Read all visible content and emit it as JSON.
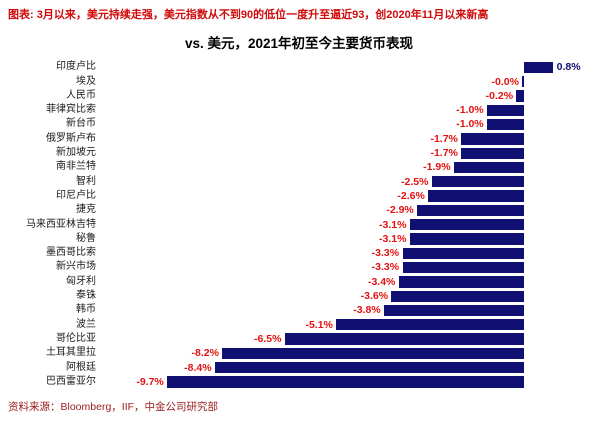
{
  "figure": {
    "caption": "图表: 3月以来，美元持续走强，美元指数从不到90的低位一度升至逼近93，创2020年11月以来新高",
    "source": "资料来源：Bloomberg，IIF，中金公司研究部"
  },
  "chart_data": {
    "type": "bar",
    "orientation": "horizontal",
    "title": "vs. 美元，2021年初至今主要货币表现",
    "unit": "%",
    "xlim": [
      -11.5,
      1.8
    ],
    "grid": false,
    "legend": "none",
    "bar_color": "#101073",
    "negative_label_color": "#e31212",
    "positive_label_color": "#101073",
    "categories": [
      "印度卢比",
      "埃及",
      "人民币",
      "菲律宾比索",
      "新台币",
      "俄罗斯卢布",
      "新加坡元",
      "南非兰特",
      "智利",
      "印尼卢比",
      "捷克",
      "马来西亚林吉特",
      "秘鲁",
      "墨西哥比索",
      "新兴市场",
      "匈牙利",
      "泰铢",
      "韩币",
      "波兰",
      "哥伦比亚",
      "土耳其里拉",
      "阿根廷",
      "巴西雷亚尔"
    ],
    "values": [
      0.8,
      -0.0,
      -0.2,
      -1.0,
      -1.0,
      -1.7,
      -1.7,
      -1.9,
      -2.5,
      -2.6,
      -2.9,
      -3.1,
      -3.1,
      -3.3,
      -3.3,
      -3.4,
      -3.6,
      -3.8,
      -5.1,
      -6.5,
      -8.2,
      -8.4,
      -9.7
    ],
    "value_labels": [
      "0.8%",
      "-0.0%",
      "-0.2%",
      "-1.0%",
      "-1.0%",
      "-1.7%",
      "-1.7%",
      "-1.9%",
      "-2.5%",
      "-2.6%",
      "-2.9%",
      "-3.1%",
      "-3.1%",
      "-3.3%",
      "-3.3%",
      "-3.4%",
      "-3.6%",
      "-3.8%",
      "-5.1%",
      "-6.5%",
      "-8.2%",
      "-8.4%",
      "-9.7%"
    ]
  }
}
